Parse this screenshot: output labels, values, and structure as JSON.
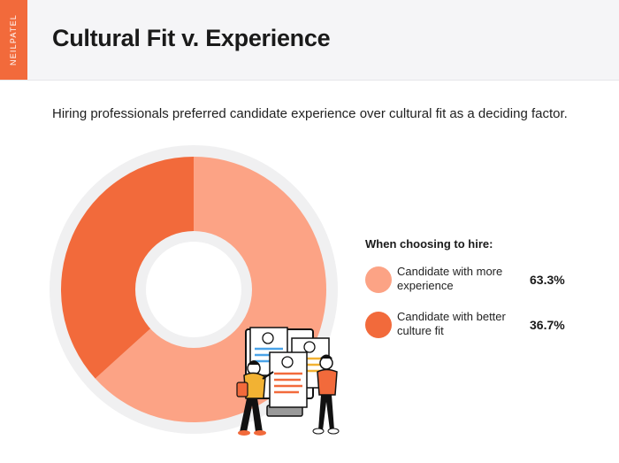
{
  "brand": "NEILPATEL",
  "title": "Cultural Fit v. Experience",
  "subtitle": "Hiring professionals preferred candidate experience over cultural fit as a deciding factor.",
  "colors": {
    "accent": "#f26a3b",
    "experience": "#fca385",
    "culture_fit": "#f26a3b",
    "ring": "#f0f0f1"
  },
  "legend": {
    "title": "When choosing to hire:",
    "items": [
      {
        "label": "Candidate with more experience",
        "value": "63.3%"
      },
      {
        "label": "Candidate with better culture fit",
        "value": "36.7%"
      }
    ]
  },
  "chart_data": {
    "type": "pie",
    "title": "Cultural Fit v. Experience",
    "categories": [
      "Candidate with more experience",
      "Candidate with better culture fit"
    ],
    "values": [
      63.3,
      36.7
    ],
    "legend_title": "When choosing to hire:",
    "legend_position": "right",
    "donut": true
  }
}
